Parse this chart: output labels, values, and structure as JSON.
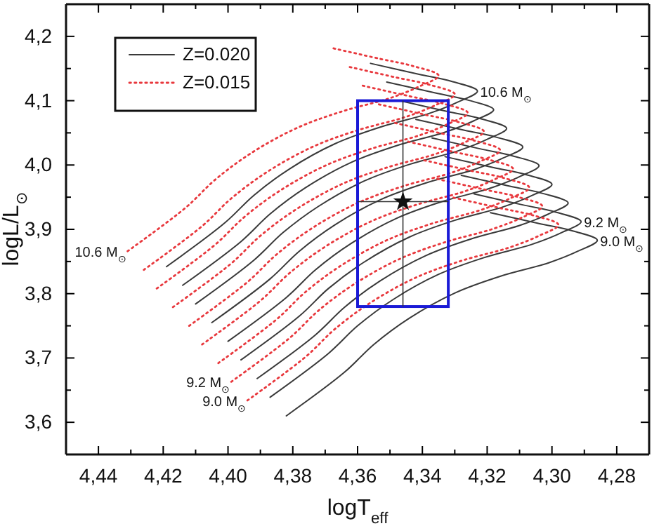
{
  "chart_data": {
    "type": "line",
    "xlabel": "logT$_{eff}$",
    "ylabel": "logL/L$_{⊙}$",
    "xlim": [
      4.45,
      4.27
    ],
    "ylim": [
      3.55,
      4.25
    ],
    "xticks": [
      {
        "value": 4.44,
        "label": "4,44"
      },
      {
        "value": 4.43,
        "label": null
      },
      {
        "value": 4.42,
        "label": "4,42"
      },
      {
        "value": 4.41,
        "label": null
      },
      {
        "value": 4.4,
        "label": "4,40"
      },
      {
        "value": 4.39,
        "label": null
      },
      {
        "value": 4.38,
        "label": "4,38"
      },
      {
        "value": 4.37,
        "label": null
      },
      {
        "value": 4.36,
        "label": "4,36"
      },
      {
        "value": 4.35,
        "label": null
      },
      {
        "value": 4.34,
        "label": "4,34"
      },
      {
        "value": 4.33,
        "label": null
      },
      {
        "value": 4.32,
        "label": "4,32"
      },
      {
        "value": 4.31,
        "label": null
      },
      {
        "value": 4.3,
        "label": "4,30"
      },
      {
        "value": 4.29,
        "label": null
      },
      {
        "value": 4.28,
        "label": "4,28"
      }
    ],
    "yticks": [
      {
        "value": 3.6,
        "label": "3,6"
      },
      {
        "value": 3.65,
        "label": null
      },
      {
        "value": 3.7,
        "label": "3,7"
      },
      {
        "value": 3.75,
        "label": null
      },
      {
        "value": 3.8,
        "label": "3,8"
      },
      {
        "value": 3.85,
        "label": null
      },
      {
        "value": 3.9,
        "label": "3,9"
      },
      {
        "value": 3.95,
        "label": null
      },
      {
        "value": 4.0,
        "label": "4,0"
      },
      {
        "value": 4.05,
        "label": null
      },
      {
        "value": 4.1,
        "label": "4,1"
      },
      {
        "value": 4.15,
        "label": null
      },
      {
        "value": 4.2,
        "label": "4,2"
      }
    ],
    "grid": false,
    "legend": "top left",
    "annotations": [
      {
        "text": "10.6 M$_{⊙}$",
        "x": 4.323,
        "y": 4.115
      },
      {
        "text": "9.2 M$_{⊙}$",
        "x": 4.291,
        "y": 3.912
      },
      {
        "text": "9.0 M$_{⊙}$",
        "x": 4.286,
        "y": 3.883
      },
      {
        "text": "10.6 M$_{⊙}$",
        "x": 4.431,
        "y": 3.866
      },
      {
        "text": "9.2 M$_{⊙}$",
        "x": 4.399,
        "y": 3.663
      },
      {
        "text": "9.0 M$_{⊙}$",
        "x": 4.394,
        "y": 3.634
      }
    ],
    "series": [
      {
        "name": "Z=0.020",
        "color": "#3a3a3a",
        "line_style": "solid",
        "marker": "none",
        "x": [
          4.382,
          4.364,
          4.355,
          4.344,
          4.33,
          4.316,
          4.301,
          4.292,
          4.286,
          4.294,
          4.304,
          4.319
        ],
        "values": [
          3.61,
          3.678,
          3.721,
          3.762,
          3.801,
          3.827,
          3.848,
          3.866,
          3.883,
          3.898,
          3.909,
          3.926
        ]
      },
      {
        "color": "#3a3a3a",
        "line_style": "solid",
        "marker": "none",
        "x": [
          4.387,
          4.369,
          4.36,
          4.349,
          4.335,
          4.321,
          4.306,
          4.297,
          4.291,
          4.299,
          4.309,
          4.324
        ],
        "values": [
          3.639,
          3.707,
          3.75,
          3.791,
          3.83,
          3.856,
          3.877,
          3.895,
          3.912,
          3.927,
          3.938,
          3.955
        ]
      },
      {
        "color": "#3a3a3a",
        "line_style": "solid",
        "marker": "none",
        "x": [
          4.391,
          4.373,
          4.364,
          4.353,
          4.339,
          4.325,
          4.31,
          4.301,
          4.295,
          4.303,
          4.313,
          4.328
        ],
        "values": [
          3.668,
          3.736,
          3.779,
          3.82,
          3.859,
          3.885,
          3.906,
          3.924,
          3.941,
          3.956,
          3.967,
          3.984
        ]
      },
      {
        "color": "#3a3a3a",
        "line_style": "solid",
        "marker": "none",
        "x": [
          4.396,
          4.378,
          4.369,
          4.358,
          4.344,
          4.33,
          4.315,
          4.306,
          4.3,
          4.308,
          4.318,
          4.333
        ],
        "values": [
          3.697,
          3.765,
          3.808,
          3.849,
          3.888,
          3.914,
          3.935,
          3.953,
          3.97,
          3.985,
          3.996,
          4.013
        ]
      },
      {
        "color": "#3a3a3a",
        "line_style": "solid",
        "marker": "none",
        "x": [
          4.4,
          4.382,
          4.373,
          4.362,
          4.348,
          4.334,
          4.319,
          4.31,
          4.304,
          4.312,
          4.322,
          4.337
        ],
        "values": [
          3.726,
          3.794,
          3.837,
          3.878,
          3.917,
          3.943,
          3.964,
          3.982,
          3.999,
          4.014,
          4.025,
          4.042
        ]
      },
      {
        "color": "#3a3a3a",
        "line_style": "solid",
        "marker": "none",
        "x": [
          4.405,
          4.387,
          4.378,
          4.367,
          4.353,
          4.339,
          4.324,
          4.315,
          4.309,
          4.317,
          4.327,
          4.342
        ],
        "values": [
          3.755,
          3.823,
          3.866,
          3.907,
          3.946,
          3.972,
          3.993,
          4.011,
          4.028,
          4.043,
          4.054,
          4.071
        ]
      },
      {
        "color": "#3a3a3a",
        "line_style": "solid",
        "marker": "none",
        "x": [
          4.41,
          4.392,
          4.383,
          4.372,
          4.358,
          4.344,
          4.329,
          4.32,
          4.314,
          4.322,
          4.332,
          4.347
        ],
        "values": [
          3.784,
          3.852,
          3.895,
          3.936,
          3.975,
          4.001,
          4.022,
          4.04,
          4.057,
          4.072,
          4.083,
          4.1
        ]
      },
      {
        "color": "#3a3a3a",
        "line_style": "solid",
        "marker": "none",
        "x": [
          4.414,
          4.396,
          4.387,
          4.376,
          4.362,
          4.348,
          4.333,
          4.324,
          4.318,
          4.326,
          4.336,
          4.351
        ],
        "values": [
          3.813,
          3.881,
          3.924,
          3.965,
          4.004,
          4.03,
          4.051,
          4.069,
          4.086,
          4.101,
          4.112,
          4.129
        ]
      },
      {
        "color": "#3a3a3a",
        "line_style": "solid",
        "marker": "none",
        "x": [
          4.419,
          4.401,
          4.392,
          4.381,
          4.367,
          4.353,
          4.338,
          4.329,
          4.323,
          4.331,
          4.341,
          4.356
        ],
        "values": [
          3.842,
          3.91,
          3.953,
          3.994,
          4.033,
          4.059,
          4.08,
          4.098,
          4.115,
          4.13,
          4.141,
          4.158
        ]
      },
      {
        "name": "Z=0.015",
        "color": "#e8383d",
        "line_style": "dotted",
        "marker": "none",
        "x": [
          4.394,
          4.376,
          4.367,
          4.356,
          4.342,
          4.328,
          4.313,
          4.304,
          4.298,
          4.306,
          4.316,
          4.331
        ],
        "values": [
          3.634,
          3.702,
          3.745,
          3.786,
          3.825,
          3.851,
          3.872,
          3.89,
          3.907,
          3.922,
          3.933,
          3.95
        ]
      },
      {
        "color": "#e8383d",
        "line_style": "dotted",
        "marker": "none",
        "x": [
          4.399,
          4.381,
          4.372,
          4.361,
          4.347,
          4.333,
          4.318,
          4.309,
          4.303,
          4.311,
          4.321,
          4.336
        ],
        "values": [
          3.663,
          3.731,
          3.774,
          3.815,
          3.854,
          3.88,
          3.901,
          3.919,
          3.936,
          3.951,
          3.962,
          3.979
        ]
      },
      {
        "color": "#e8383d",
        "line_style": "dotted",
        "marker": "none",
        "x": [
          4.403,
          4.385,
          4.376,
          4.365,
          4.351,
          4.337,
          4.322,
          4.313,
          4.307,
          4.315,
          4.325,
          4.34
        ],
        "values": [
          3.692,
          3.76,
          3.803,
          3.844,
          3.883,
          3.909,
          3.93,
          3.948,
          3.965,
          3.98,
          3.991,
          4.008
        ]
      },
      {
        "color": "#e8383d",
        "line_style": "dotted",
        "marker": "none",
        "x": [
          4.408,
          4.39,
          4.381,
          4.37,
          4.356,
          4.342,
          4.327,
          4.318,
          4.312,
          4.32,
          4.33,
          4.345
        ],
        "values": [
          3.721,
          3.789,
          3.832,
          3.873,
          3.912,
          3.938,
          3.959,
          3.977,
          3.994,
          4.009,
          4.02,
          4.037
        ]
      },
      {
        "color": "#e8383d",
        "line_style": "dotted",
        "marker": "none",
        "x": [
          4.412,
          4.394,
          4.385,
          4.374,
          4.36,
          4.346,
          4.331,
          4.322,
          4.316,
          4.324,
          4.334,
          4.349
        ],
        "values": [
          3.75,
          3.818,
          3.861,
          3.902,
          3.941,
          3.967,
          3.988,
          4.006,
          4.023,
          4.038,
          4.049,
          4.066
        ]
      },
      {
        "color": "#e8383d",
        "line_style": "dotted",
        "marker": "none",
        "x": [
          4.417,
          4.399,
          4.39,
          4.379,
          4.365,
          4.351,
          4.336,
          4.327,
          4.321,
          4.329,
          4.339,
          4.354
        ],
        "values": [
          3.779,
          3.847,
          3.89,
          3.931,
          3.97,
          3.996,
          4.017,
          4.035,
          4.052,
          4.067,
          4.078,
          4.095
        ]
      },
      {
        "color": "#e8383d",
        "line_style": "dotted",
        "marker": "none",
        "x": [
          4.422,
          4.404,
          4.395,
          4.384,
          4.37,
          4.356,
          4.341,
          4.332,
          4.326,
          4.334,
          4.344,
          4.359
        ],
        "values": [
          3.808,
          3.876,
          3.919,
          3.96,
          3.999,
          4.025,
          4.046,
          4.064,
          4.081,
          4.096,
          4.107,
          4.124
        ]
      },
      {
        "color": "#e8383d",
        "line_style": "dotted",
        "marker": "none",
        "x": [
          4.426,
          4.408,
          4.399,
          4.388,
          4.374,
          4.36,
          4.345,
          4.336,
          4.33,
          4.338,
          4.348,
          4.363
        ],
        "values": [
          3.837,
          3.905,
          3.948,
          3.989,
          4.028,
          4.054,
          4.075,
          4.093,
          4.11,
          4.125,
          4.136,
          4.153
        ]
      },
      {
        "color": "#e8383d",
        "line_style": "dotted",
        "marker": "none",
        "x": [
          4.431,
          4.413,
          4.404,
          4.393,
          4.379,
          4.365,
          4.35,
          4.341,
          4.335,
          4.343,
          4.353,
          4.368
        ],
        "values": [
          3.866,
          3.934,
          3.977,
          4.018,
          4.057,
          4.083,
          4.104,
          4.122,
          4.139,
          4.154,
          4.165,
          4.182
        ]
      },
      {
        "type": "scatter",
        "color": "#111111",
        "marker": "star",
        "x": [
          4.346
        ],
        "values": [
          3.943
        ],
        "errors": [
          [
            3.78,
            4.1
          ]
        ],
        "xerrors": [
          [
            4.332,
            4.36
          ]
        ]
      }
    ]
  }
}
